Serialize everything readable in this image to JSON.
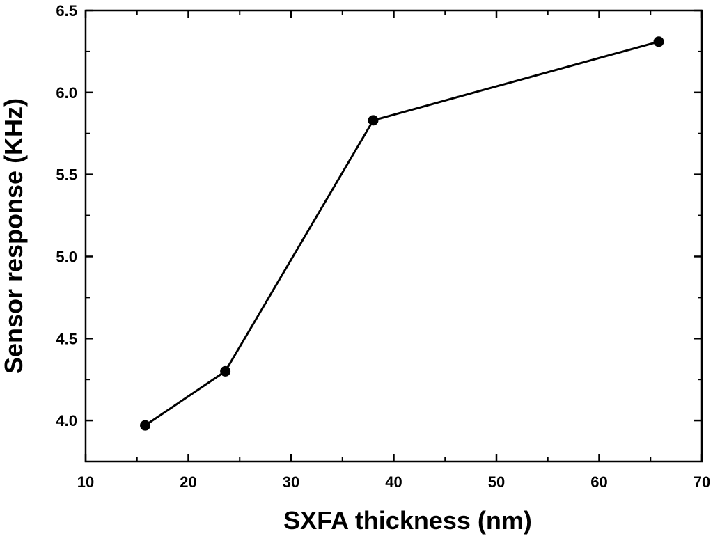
{
  "chart_data": {
    "type": "line",
    "title": "",
    "xlabel": "SXFA thickness (nm)",
    "ylabel": "Sensor response (KHz)",
    "xlim": [
      10,
      70
    ],
    "ylim": [
      3.75,
      6.5
    ],
    "x_ticks": [
      10,
      20,
      30,
      40,
      50,
      60,
      70
    ],
    "y_ticks": [
      4.0,
      4.5,
      5.0,
      5.5,
      6.0,
      6.5
    ],
    "x_tick_labels": [
      "10",
      "20",
      "30",
      "40",
      "50",
      "60",
      "70"
    ],
    "y_tick_labels": [
      "4.0",
      "4.5",
      "5.0",
      "5.5",
      "6.0",
      "6.5"
    ],
    "grid": false,
    "legend": "none",
    "series": [
      {
        "x": [
          15.8,
          23.6,
          38.0,
          65.8
        ],
        "y": [
          3.97,
          4.3,
          5.83,
          6.31
        ],
        "color": "#000000",
        "marker": "circle"
      }
    ]
  }
}
